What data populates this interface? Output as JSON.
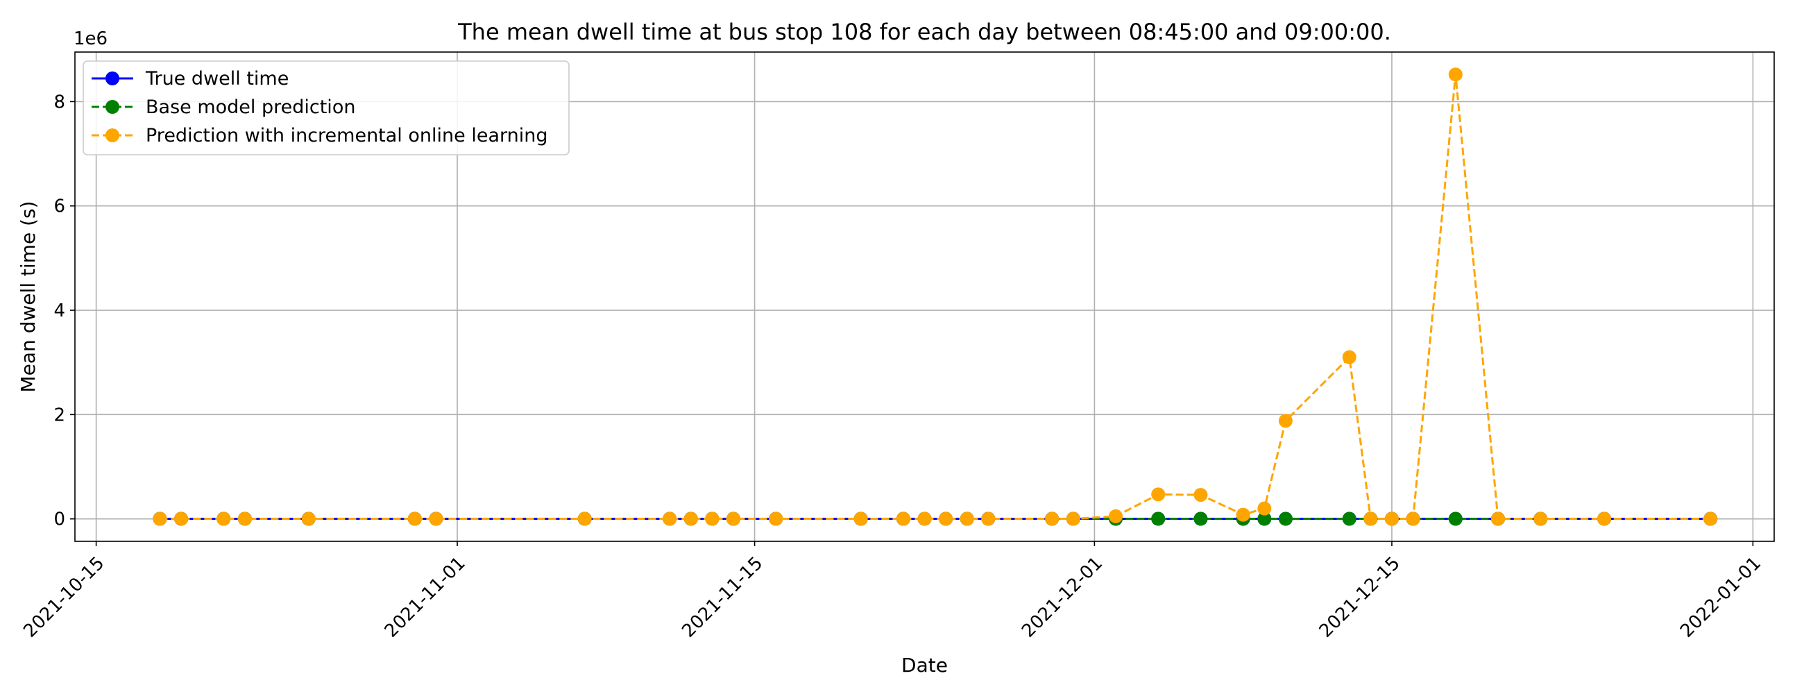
{
  "chart_data": {
    "type": "line",
    "title": "The mean dwell time at bus stop 108 for each day between 08:45:00 and 09:00:00.",
    "xlabel": "Date",
    "ylabel": "Mean dwell time (s)",
    "y_offset_label": "1e6",
    "y_scale_factor": 1000000,
    "xlim": [
      "2021-10-14",
      "2022-01-02"
    ],
    "ylim": [
      -0.43,
      8.95
    ],
    "x_ticks": [
      "2021-10-15",
      "2021-11-01",
      "2021-11-15",
      "2021-12-01",
      "2021-12-15",
      "2022-01-01"
    ],
    "y_ticks": [
      0,
      2,
      4,
      6,
      8
    ],
    "grid": true,
    "legend_position": "top-left",
    "x": [
      "2021-10-18",
      "2021-10-19",
      "2021-10-21",
      "2021-10-22",
      "2021-10-25",
      "2021-10-30",
      "2021-10-31",
      "2021-11-07",
      "2021-11-11",
      "2021-11-12",
      "2021-11-13",
      "2021-11-14",
      "2021-11-16",
      "2021-11-20",
      "2021-11-22",
      "2021-11-23",
      "2021-11-24",
      "2021-11-25",
      "2021-11-26",
      "2021-11-29",
      "2021-11-30",
      "2021-12-02",
      "2021-12-04",
      "2021-12-06",
      "2021-12-08",
      "2021-12-09",
      "2021-12-10",
      "2021-12-13",
      "2021-12-14",
      "2021-12-15",
      "2021-12-16",
      "2021-12-18",
      "2021-12-20",
      "2021-12-22",
      "2021-12-25",
      "2021-12-30"
    ],
    "series": [
      {
        "name": "True dwell time",
        "color": "#0000ff",
        "line_style": "solid",
        "values": [
          0.002,
          0.002,
          0.002,
          0.002,
          0.002,
          0.002,
          0.002,
          0.002,
          0.002,
          0.002,
          0.002,
          0.002,
          0.002,
          0.002,
          0.002,
          0.002,
          0.002,
          0.002,
          0.002,
          0.002,
          0.002,
          0.002,
          0.002,
          0.002,
          0.002,
          0.002,
          0.002,
          0.002,
          0.002,
          0.002,
          0.002,
          0.002,
          0.002,
          0.002,
          0.002,
          0.002
        ]
      },
      {
        "name": "Base model prediction",
        "color": "#008000",
        "line_style": "dashed",
        "values": [
          0.002,
          0.002,
          0.002,
          0.002,
          0.002,
          0.002,
          0.002,
          0.002,
          0.002,
          0.002,
          0.002,
          0.002,
          0.002,
          0.002,
          0.002,
          0.002,
          0.002,
          0.002,
          0.002,
          0.002,
          0.002,
          0.002,
          0.002,
          0.002,
          0.002,
          0.002,
          0.002,
          0.002,
          0.002,
          0.002,
          0.002,
          0.002,
          0.002,
          0.002,
          0.002,
          0.002
        ]
      },
      {
        "name": "Prediction with incremental online learning",
        "color": "#ffa500",
        "line_style": "dashed",
        "values": [
          0.002,
          0.002,
          0.002,
          0.002,
          0.002,
          0.002,
          0.002,
          0.002,
          0.002,
          0.002,
          0.002,
          0.002,
          0.002,
          0.002,
          0.002,
          0.002,
          0.002,
          0.002,
          0.002,
          0.002,
          0.002,
          0.05,
          0.47,
          0.46,
          0.08,
          0.2,
          1.88,
          3.1,
          0.002,
          0.002,
          0.002,
          8.52,
          0.002,
          0.002,
          0.002,
          0.002
        ]
      }
    ]
  }
}
